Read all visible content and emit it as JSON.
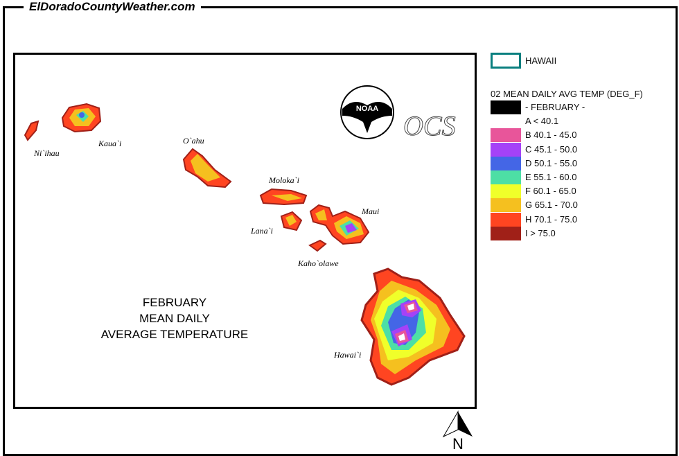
{
  "site": "ElDoradoCountyWeather.com",
  "map": {
    "title": [
      "FEBRUARY",
      "MEAN DAILY",
      "AVERAGE TEMPERATURE"
    ],
    "islands": [
      "Ni`ihau",
      "Kaua`i",
      "O`ahu",
      "Moloka`i",
      "Lana`i",
      "Maui",
      "Kaho`olawe",
      "Hawai`i"
    ],
    "logos": {
      "noaa": "NOAA",
      "ocs": "OCS"
    },
    "north": "N"
  },
  "legend": {
    "region": "HAWAII",
    "region_color": "#0a7f7f",
    "title": "02 MEAN DAILY AVG TEMP (DEG_F)",
    "items": [
      {
        "label": "- FEBRUARY -",
        "color": "#000000"
      },
      {
        "label": "A < 40.1",
        "color": "#ffffff"
      },
      {
        "label": "B 40.1 - 45.0",
        "color": "#e8559a"
      },
      {
        "label": "C 45.1 - 50.0",
        "color": "#a542f7"
      },
      {
        "label": "D 50.1 - 55.0",
        "color": "#4466e6"
      },
      {
        "label": "E 55.1 - 60.0",
        "color": "#4ddfa5"
      },
      {
        "label": "F 60.1 - 65.0",
        "color": "#f0ff2a"
      },
      {
        "label": "G 65.1 - 70.0",
        "color": "#f5c01f"
      },
      {
        "label": "H 70.1 - 75.0",
        "color": "#ff4521"
      },
      {
        "label": "I > 75.0",
        "color": "#a02018"
      }
    ]
  }
}
